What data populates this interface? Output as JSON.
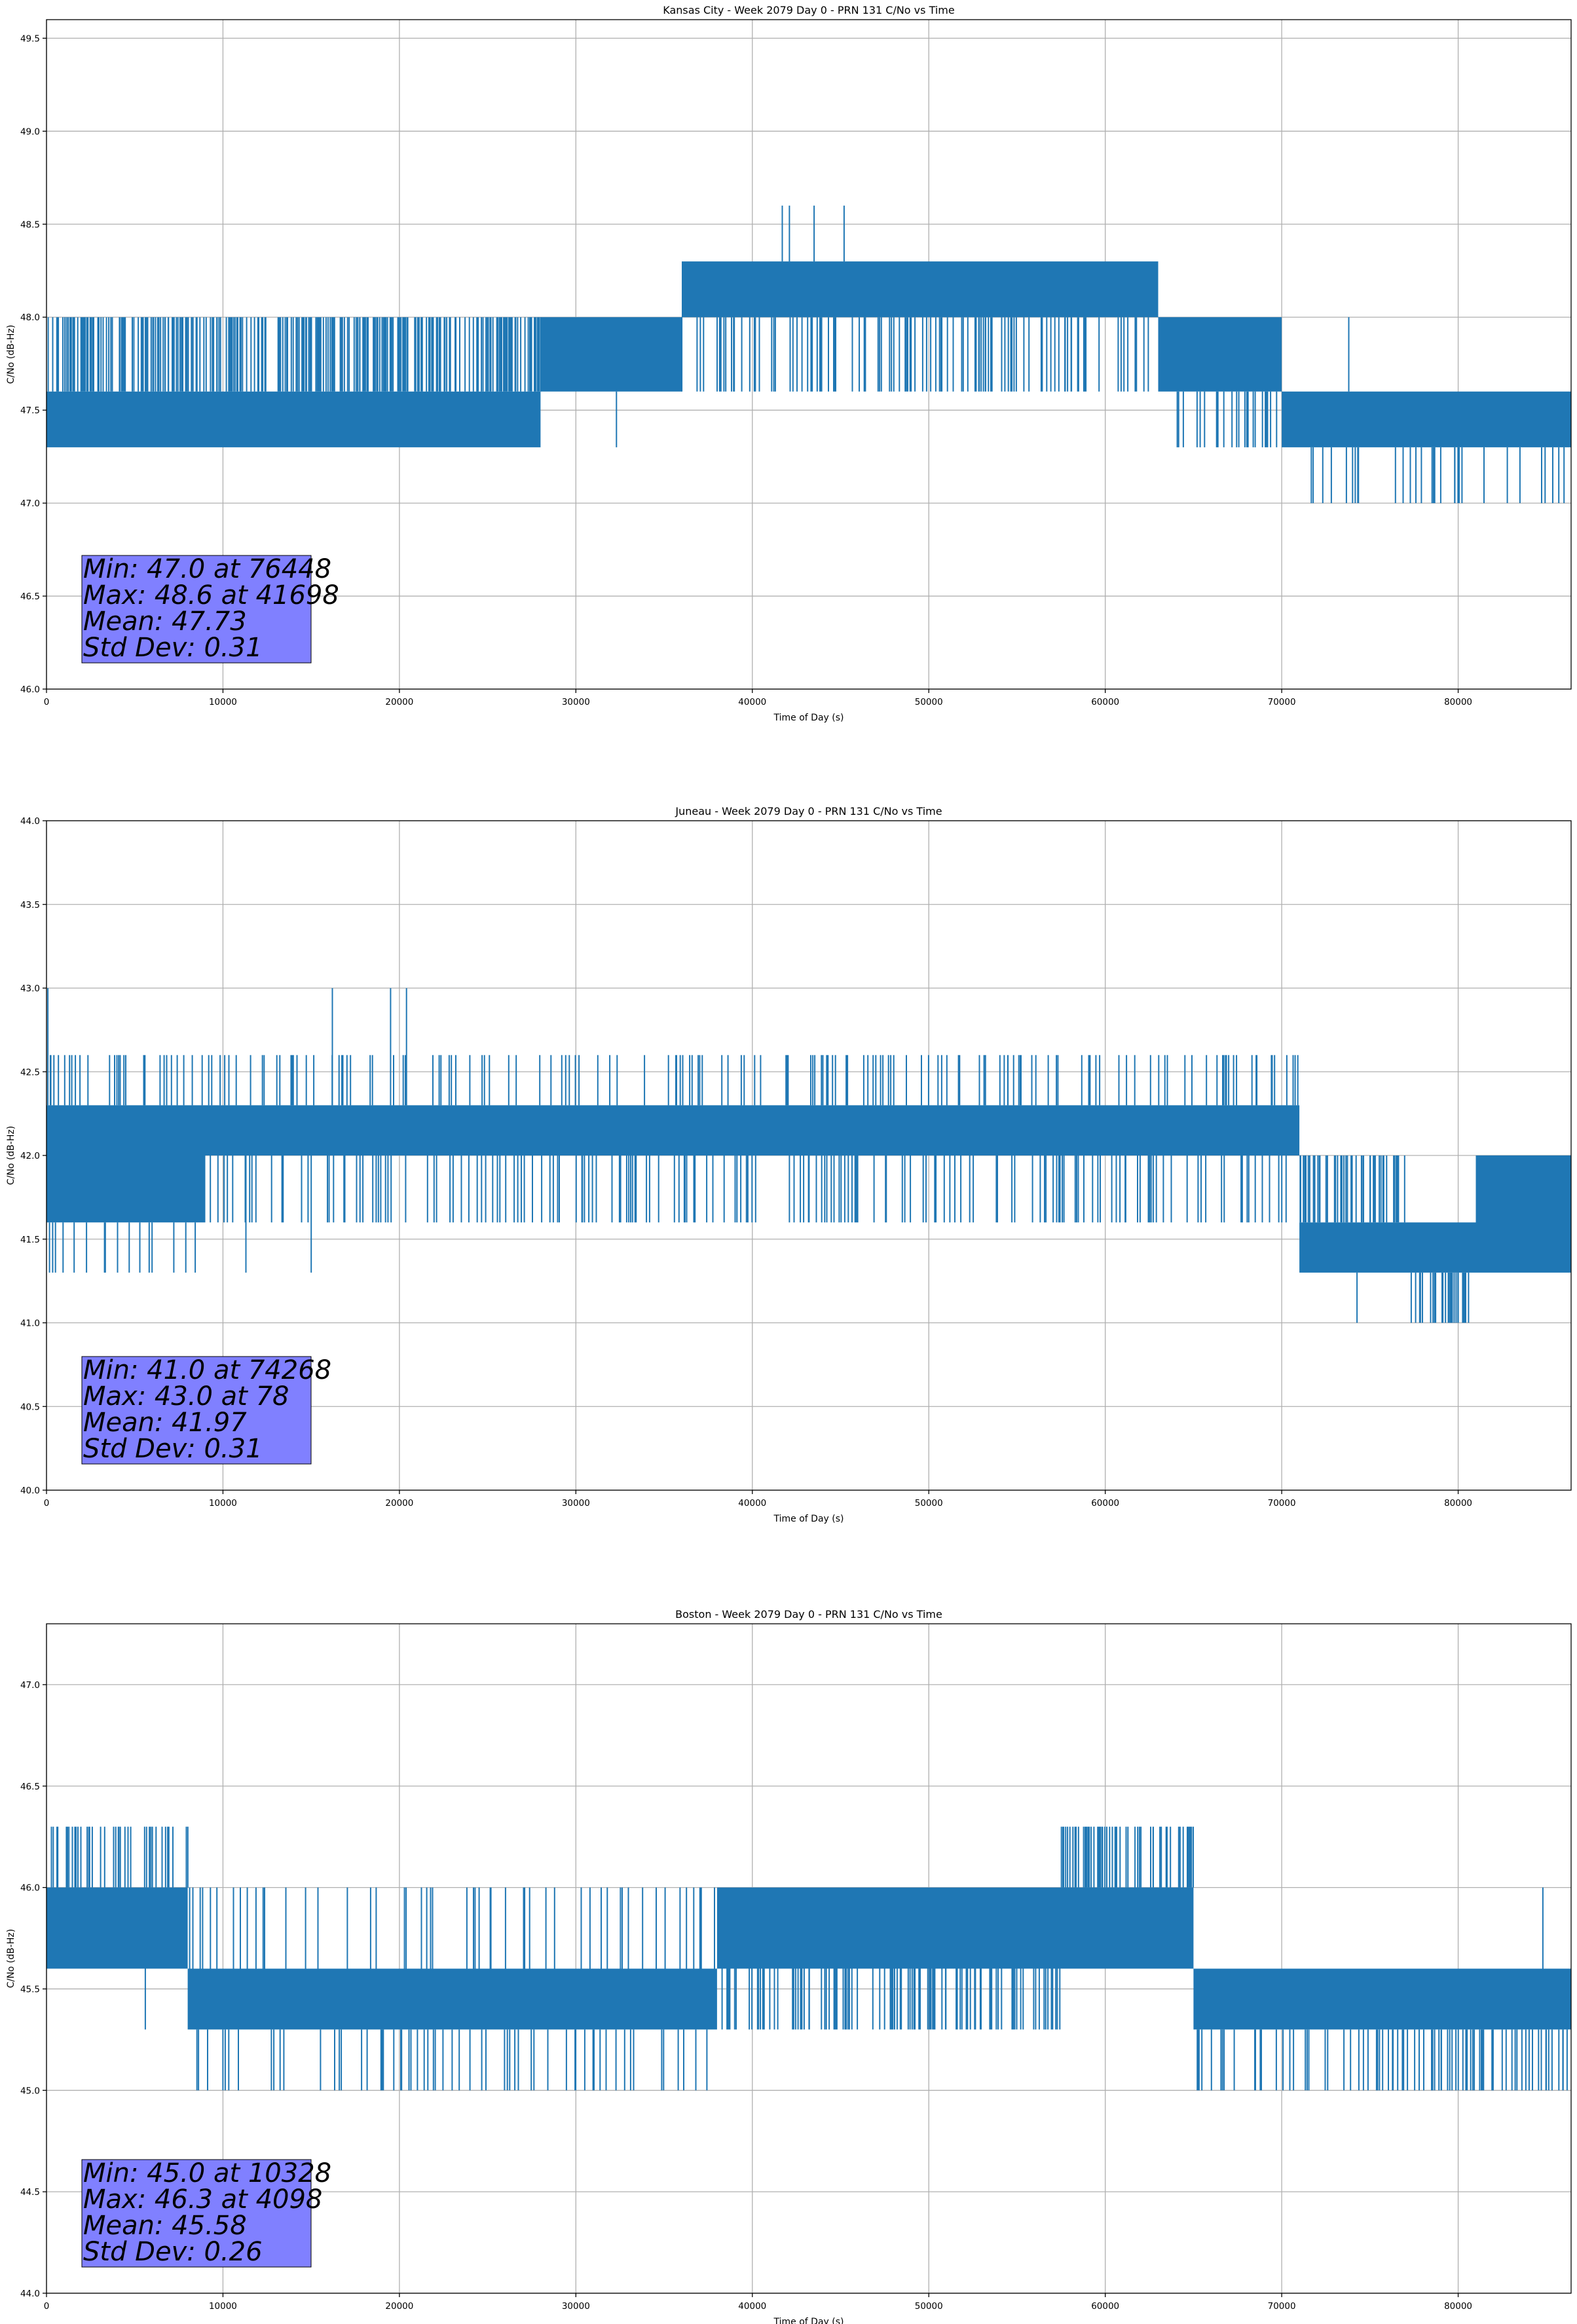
{
  "chart_data": [
    {
      "type": "line",
      "title": "Kansas City - Week 2079 Day 0 - PRN 131 C/No vs Time",
      "xlabel": "Time of Day (s)",
      "ylabel": "C/No (dB-Hz)",
      "xlim": [
        0,
        86400
      ],
      "ylim": [
        46.0,
        49.6
      ],
      "xticks": [
        0,
        10000,
        20000,
        30000,
        40000,
        50000,
        60000,
        70000,
        80000
      ],
      "yticks": [
        46.0,
        46.5,
        47.0,
        47.5,
        48.0,
        48.5,
        49.0,
        49.5
      ],
      "ytick_decimals": 1,
      "grid": true,
      "line_color": "#1f77b4",
      "stats_box_color": "#8080ff",
      "stats": [
        "Min: 47.0 at 76448",
        "Max: 48.6 at 41698",
        "Mean: 47.73",
        "Std Dev: 0.31"
      ],
      "series": [
        {
          "segments": [
            {
              "x": [
                0,
                28000
              ],
              "levels": [
                47.3,
                47.6
              ],
              "spikes_up": 48.0,
              "spike_freq": 0.55
            },
            {
              "x": [
                28000,
                36000
              ],
              "levels": [
                47.6,
                48.0
              ],
              "spikes_down": 47.6,
              "spike_freq": 0.2
            },
            {
              "x": [
                36000,
                63000
              ],
              "levels": [
                48.0,
                48.3
              ],
              "spikes_down": 47.6,
              "spike_freq": 0.25
            },
            {
              "x": [
                63000,
                70000
              ],
              "levels": [
                47.6,
                48.0
              ],
              "spikes_down": 47.3,
              "spike_freq": 0.2
            },
            {
              "x": [
                70000,
                86400
              ],
              "levels": [
                47.3,
                47.6
              ],
              "spikes_down": 47.0,
              "spike_freq": 0.1
            }
          ],
          "points": [
            {
              "x": 41698,
              "y": 48.6
            },
            {
              "x": 42100,
              "y": 48.6
            },
            {
              "x": 43500,
              "y": 48.6
            },
            {
              "x": 45200,
              "y": 48.6
            },
            {
              "x": 76448,
              "y": 47.0
            },
            {
              "x": 79800,
              "y": 47.0
            },
            {
              "x": 83500,
              "y": 47.0
            },
            {
              "x": 86000,
              "y": 47.0
            },
            {
              "x": 32300,
              "y": 47.3
            },
            {
              "x": 73800,
              "y": 48.0
            }
          ]
        }
      ]
    },
    {
      "type": "line",
      "title": "Juneau - Week 2079 Day 0 - PRN 131 C/No vs Time",
      "xlabel": "Time of Day (s)",
      "ylabel": "C/No (dB-Hz)",
      "xlim": [
        0,
        86400
      ],
      "ylim": [
        40.0,
        44.0
      ],
      "xticks": [
        0,
        10000,
        20000,
        30000,
        40000,
        50000,
        60000,
        70000,
        80000
      ],
      "yticks": [
        40.0,
        40.5,
        41.0,
        41.5,
        42.0,
        42.5,
        43.0,
        43.5,
        44.0
      ],
      "ytick_decimals": 1,
      "grid": true,
      "line_color": "#1f77b4",
      "stats_box_color": "#8080ff",
      "stats": [
        "Min: 41.0 at 74268",
        "Max: 43.0 at 78",
        "Mean: 41.97",
        "Std Dev: 0.31"
      ],
      "series": [
        {
          "segments": [
            {
              "x": [
                0,
                9000
              ],
              "levels": [
                41.6,
                42.3
              ],
              "spikes_up": 42.6,
              "spikes_down": 41.3,
              "spike_freq": 0.35
            },
            {
              "x": [
                9000,
                71000
              ],
              "levels": [
                42.0,
                42.3
              ],
              "spikes_down": 41.6,
              "spikes_up": 42.6,
              "spike_freq": 0.3
            },
            {
              "x": [
                71000,
                77000
              ],
              "levels": [
                41.3,
                41.6
              ],
              "spikes_up": 42.0,
              "spike_freq": 0.35
            },
            {
              "x": [
                77000,
                81000
              ],
              "levels": [
                41.3,
                41.6
              ],
              "spikes_down": 41.0,
              "spike_freq": 0.5
            },
            {
              "x": [
                81000,
                86400
              ],
              "levels": [
                41.3,
                42.0
              ],
              "spike_freq": 0.3
            }
          ],
          "points": [
            {
              "x": 78,
              "y": 43.0
            },
            {
              "x": 16200,
              "y": 43.0
            },
            {
              "x": 19500,
              "y": 43.0
            },
            {
              "x": 20400,
              "y": 43.0
            },
            {
              "x": 74268,
              "y": 41.0
            },
            {
              "x": 15000,
              "y": 41.3
            },
            {
              "x": 11300,
              "y": 41.3
            }
          ]
        }
      ]
    },
    {
      "type": "line",
      "title": "Boston - Week 2079 Day 0 - PRN 131 C/No vs Time",
      "xlabel": "Time of Day (s)",
      "ylabel": "C/No (dB-Hz)",
      "xlim": [
        0,
        86400
      ],
      "ylim": [
        44.0,
        47.3
      ],
      "xticks": [
        0,
        10000,
        20000,
        30000,
        40000,
        50000,
        60000,
        70000,
        80000
      ],
      "yticks": [
        44.0,
        44.5,
        45.0,
        45.5,
        46.0,
        46.5,
        47.0
      ],
      "ytick_decimals": 1,
      "grid": true,
      "line_color": "#1f77b4",
      "stats_box_color": "#8080ff",
      "stats": [
        "Min: 45.0 at 10328",
        "Max: 46.3 at 4098",
        "Mean: 45.58",
        "Std Dev: 0.26"
      ],
      "series": [
        {
          "segments": [
            {
              "x": [
                0,
                8000
              ],
              "levels": [
                45.6,
                46.0
              ],
              "spikes_up": 46.3,
              "spike_freq": 0.25
            },
            {
              "x": [
                8000,
                38000
              ],
              "levels": [
                45.3,
                45.6
              ],
              "spikes_down": 45.0,
              "spikes_up": 46.0,
              "spike_freq": 0.22
            },
            {
              "x": [
                38000,
                57500
              ],
              "levels": [
                45.6,
                46.0
              ],
              "spikes_down": 45.3,
              "spike_freq": 0.3
            },
            {
              "x": [
                57500,
                65000
              ],
              "levels": [
                45.6,
                46.0
              ],
              "spikes_up": 46.3,
              "spike_freq": 0.45
            },
            {
              "x": [
                65000,
                86400
              ],
              "levels": [
                45.3,
                45.6
              ],
              "spikes_down": 45.0,
              "spike_freq": 0.22
            }
          ],
          "points": [
            {
              "x": 4098,
              "y": 46.3
            },
            {
              "x": 10328,
              "y": 45.0
            },
            {
              "x": 84800,
              "y": 46.0
            },
            {
              "x": 5600,
              "y": 45.3
            }
          ]
        }
      ]
    }
  ]
}
